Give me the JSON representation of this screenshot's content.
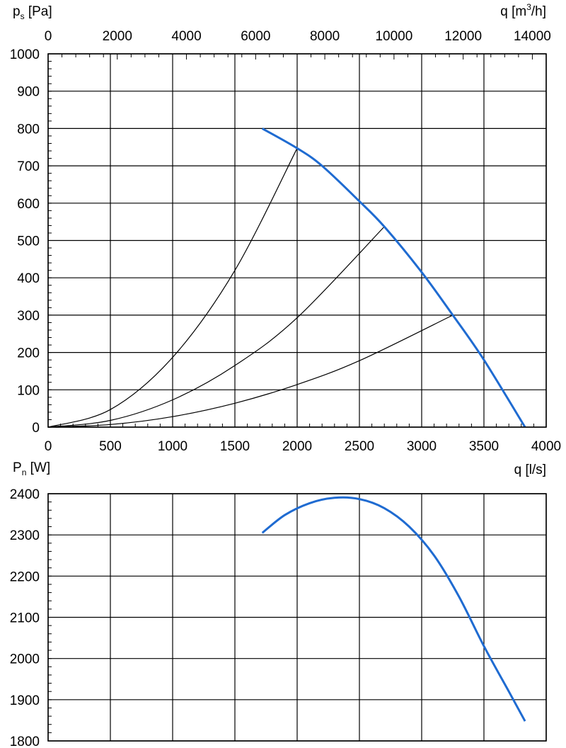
{
  "chart_data": [
    {
      "type": "line",
      "title": "",
      "ylabel": "p",
      "ylabel_sub": "s",
      "ylabel_unit": " [Pa]",
      "xlabel": "q [l/s]",
      "x2label": "q [m",
      "x2label_sup": "3",
      "x2label_end": "/h]",
      "xlim": [
        0,
        4000
      ],
      "ylim": [
        0,
        1000
      ],
      "x2lim": [
        0,
        14400
      ],
      "xticks": [
        "0",
        "500",
        "1000",
        "1500",
        "2000",
        "2500",
        "3000",
        "3500",
        "4000"
      ],
      "x2ticks": [
        "0",
        "2000",
        "4000",
        "6000",
        "8000",
        "10000",
        "12000",
        "14000"
      ],
      "yticks": [
        "0",
        "100",
        "200",
        "300",
        "400",
        "500",
        "600",
        "700",
        "800",
        "900",
        "1000"
      ],
      "grid": true,
      "series": [
        {
          "color": "#1f6bd1",
          "x": [
            1720,
            2000,
            2200,
            2500,
            2700,
            3000,
            3250,
            3500,
            3830
          ],
          "y": [
            800,
            747,
            700,
            605,
            537,
            415,
            300,
            180,
            0
          ]
        }
      ],
      "system_curves": [
        {
          "x": [
            0,
            500,
            1000,
            1500,
            2000
          ],
          "y": [
            0,
            47,
            187,
            420,
            747
          ]
        },
        {
          "x": [
            0,
            500,
            1000,
            1500,
            2000,
            2700
          ],
          "y": [
            0,
            18,
            73,
            165,
            293,
            537
          ]
        },
        {
          "x": [
            0,
            500,
            1000,
            1500,
            2000,
            2500,
            3250
          ],
          "y": [
            0,
            7,
            28,
            64,
            114,
            178,
            300
          ]
        }
      ]
    },
    {
      "type": "line",
      "title": "",
      "ylabel": "P",
      "ylabel_sub": "n",
      "ylabel_unit": " [W]",
      "xlim": [
        0,
        4000
      ],
      "ylim": [
        1800,
        2400
      ],
      "yticks": [
        "1800",
        "1900",
        "2000",
        "2100",
        "2200",
        "2300",
        "2400"
      ],
      "grid": true,
      "series": [
        {
          "color": "#1f6bd1",
          "x": [
            1720,
            1900,
            2100,
            2300,
            2500,
            2700,
            2900,
            3100,
            3300,
            3500,
            3700,
            3830
          ],
          "y": [
            2305,
            2348,
            2377,
            2390,
            2387,
            2365,
            2320,
            2250,
            2150,
            2030,
            1920,
            1848
          ]
        }
      ]
    }
  ]
}
